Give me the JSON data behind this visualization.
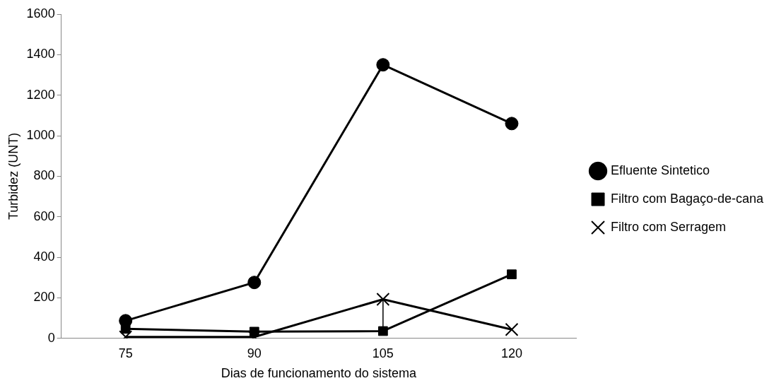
{
  "chart_data": {
    "type": "line",
    "xlabel": "Dias de funcionamento do sistema",
    "ylabel": "Turbidez (UNT)",
    "categories": [
      "75",
      "90",
      "105",
      "120"
    ],
    "series": [
      {
        "name": "Efluente Sintetico",
        "color": "#000000",
        "marker": "circle",
        "values": [
          87,
          276,
          1350,
          1060
        ]
      },
      {
        "name": "Filtro com Bagaço-de-cana",
        "color": "#000000",
        "marker": "square",
        "values": [
          47,
          33,
          36,
          316
        ],
        "errors": [
          null,
          null,
          [
            36,
            193
          ],
          null
        ]
      },
      {
        "name": "Filtro com Serragem",
        "color": "#000000",
        "marker": "cross",
        "values": [
          7,
          7,
          193,
          44
        ]
      }
    ],
    "ylim": [
      0,
      1600
    ],
    "yticks": [
      0,
      200,
      400,
      600,
      800,
      1000,
      1200,
      1400,
      1600
    ],
    "grid": false,
    "legend": "right",
    "line_style": "solid"
  }
}
